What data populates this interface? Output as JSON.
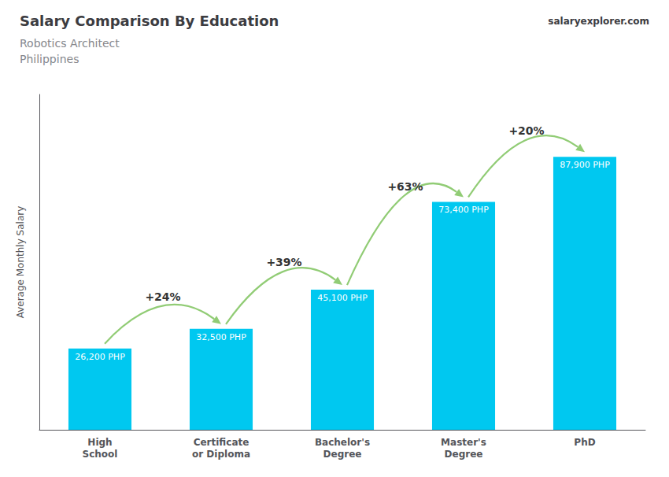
{
  "chart_data": {
    "type": "bar",
    "title": "Salary Comparison By Education",
    "subtitle": "Robotics Architect\nPhilippines",
    "source": "salaryexplorer.com",
    "ylabel": "Average Monthly Salary",
    "categories": [
      "High\nSchool",
      "Certificate\nor Diploma",
      "Bachelor's\nDegree",
      "Master's\nDegree",
      "PhD"
    ],
    "values": [
      26200,
      32500,
      45100,
      73400,
      87900
    ],
    "value_labels": [
      "26,200 PHP",
      "32,500 PHP",
      "45,100 PHP",
      "73,400 PHP",
      "87,900 PHP"
    ],
    "data_labels": true,
    "annotations": [
      "+24%",
      "+39%",
      "+63%",
      "+20%"
    ],
    "color": "#00c8f0",
    "ylim": [
      0,
      108000
    ],
    "grid": false,
    "tick_labels": "x"
  }
}
